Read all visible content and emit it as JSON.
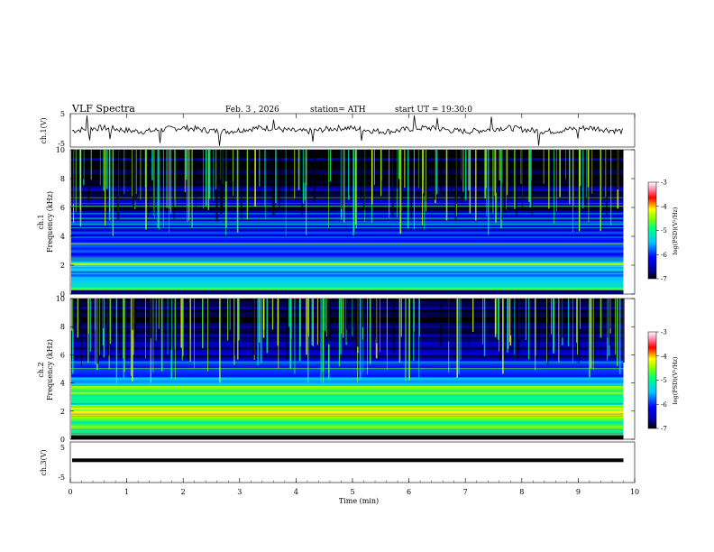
{
  "header": {
    "title": "VLF  Spectra",
    "date": "Feb. 3  , 2026",
    "station": "station= ATH",
    "start_ut": "start  UT  =    19:30:0"
  },
  "chart_data": [
    {
      "type": "line",
      "id": "ch1",
      "ylabel": "ch.1(V)",
      "ylim": [
        -5,
        5
      ],
      "xlim": [
        0,
        10
      ],
      "ytick_labels": [
        "5",
        "-5"
      ],
      "baseline_value": 0.2,
      "spike_times_min": [
        0.3,
        0.35,
        0.7,
        1.6,
        2.65,
        3.6,
        4.3,
        5.15,
        6.1,
        6.5,
        7.45,
        8.3,
        9.0
      ]
    },
    {
      "type": "heatmap",
      "id": "ch1-spectrogram",
      "ylabel": "ch.1\nFrequency (kHz)",
      "ylabel_line1": "ch.1",
      "ylabel_line2": "Frequency  (kHz)",
      "ylim": [
        0,
        10
      ],
      "xlim": [
        0,
        10
      ],
      "data_end_min": 9.8,
      "ytick_labels": [
        "0",
        "2",
        "4",
        "6",
        "8",
        "10"
      ],
      "colorbar": {
        "label": "log(PSD)(V²/Hz)",
        "range": [
          -7,
          -3
        ],
        "ticks": [
          "-3",
          "-4",
          "-5",
          "-6",
          "-7"
        ]
      },
      "bands": [
        {
          "f0": 0.0,
          "f1": 0.3,
          "level": -7
        },
        {
          "f0": 0.3,
          "f1": 1.0,
          "level": -5.2
        },
        {
          "f0": 1.0,
          "f1": 2.0,
          "level": -5.7
        },
        {
          "f0": 2.0,
          "f1": 2.3,
          "level": -4.6
        },
        {
          "f0": 2.3,
          "f1": 3.6,
          "level": -5.9
        },
        {
          "f0": 3.6,
          "f1": 5.8,
          "level": -6.2
        },
        {
          "f0": 5.8,
          "f1": 7.5,
          "level": -6.6
        },
        {
          "f0": 7.5,
          "f1": 10.0,
          "level": -6.9
        }
      ]
    },
    {
      "type": "heatmap",
      "id": "ch2-spectrogram",
      "ylabel": "ch.2\nFrequency (kHz)",
      "ylabel_line1": "ch.2",
      "ylabel_line2": "Frequency  (kHz)",
      "ylim": [
        0,
        10
      ],
      "xlim": [
        0,
        10
      ],
      "data_end_min": 9.8,
      "ytick_labels": [
        "0",
        "2",
        "4",
        "6",
        "8",
        "10"
      ],
      "colorbar": {
        "label": "log(PSD)(V²/Hz)",
        "range": [
          -7,
          -3
        ],
        "ticks": [
          "-3",
          "-4",
          "-5",
          "-6",
          "-7"
        ]
      },
      "bands": [
        {
          "f0": 0.0,
          "f1": 0.3,
          "level": -6.8
        },
        {
          "f0": 0.3,
          "f1": 1.5,
          "level": -4.9
        },
        {
          "f0": 1.5,
          "f1": 2.4,
          "level": -4.3
        },
        {
          "f0": 2.4,
          "f1": 3.2,
          "level": -5.0
        },
        {
          "f0": 3.2,
          "f1": 3.8,
          "level": -4.5
        },
        {
          "f0": 3.8,
          "f1": 5.6,
          "level": -5.8
        },
        {
          "f0": 5.6,
          "f1": 7.5,
          "level": -6.5
        },
        {
          "f0": 7.5,
          "f1": 10.0,
          "level": -6.9
        }
      ]
    },
    {
      "type": "line",
      "id": "ch3",
      "ylabel": "ch.3(V)",
      "ylim": [
        -5,
        5
      ],
      "xlim": [
        0,
        10
      ],
      "ytick_labels": [
        "5",
        "-5"
      ],
      "constant_value": 0.5,
      "xlabel": "Time  (min)",
      "xtick_labels": [
        "0",
        "1",
        "2",
        "3",
        "4",
        "5",
        "6",
        "7",
        "8",
        "9",
        "10"
      ]
    }
  ]
}
